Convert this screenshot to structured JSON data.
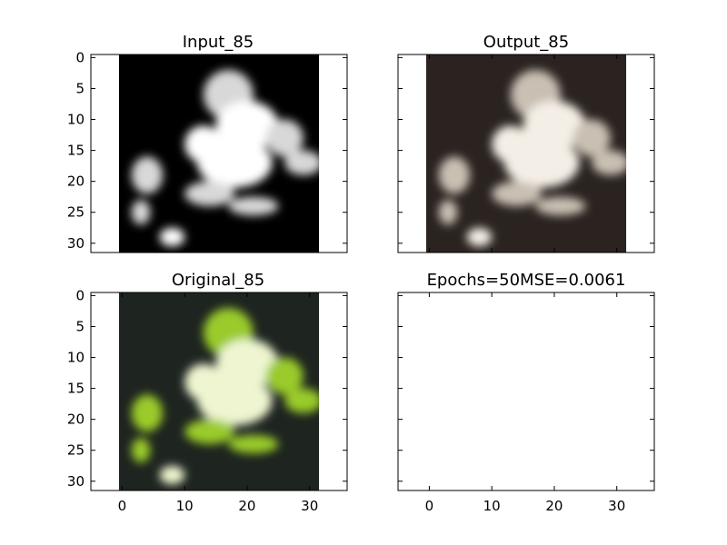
{
  "figure": {
    "panels": [
      {
        "title": "Input_85",
        "image": "grayscale-frog",
        "show_yticks": true,
        "show_xticks": false
      },
      {
        "title": "Output_85",
        "image": "sepia-frog",
        "show_yticks": false,
        "show_xticks": false
      },
      {
        "title": "Original_85",
        "image": "color-frog",
        "show_yticks": true,
        "show_xticks": true
      },
      {
        "title": "Epochs=50MSE=0.0061",
        "image": "",
        "show_yticks": false,
        "show_xticks": true
      }
    ]
  },
  "chart_data": {
    "type": "image-grid",
    "xlim": [
      -5,
      36
    ],
    "ylim": [
      31.5,
      -0.5
    ],
    "xticks": [
      0,
      10,
      20,
      30
    ],
    "yticks": [
      0,
      5,
      10,
      15,
      20,
      25,
      30
    ],
    "image_extent": {
      "x": [
        -0.5,
        31.5
      ],
      "y": [
        -0.5,
        31.5
      ]
    },
    "colors": {
      "grayscale_bg": "#000000",
      "sepia_bg": "#2a2320",
      "color_bg": "#1e2420",
      "frog_green": "#9acb2a"
    }
  }
}
